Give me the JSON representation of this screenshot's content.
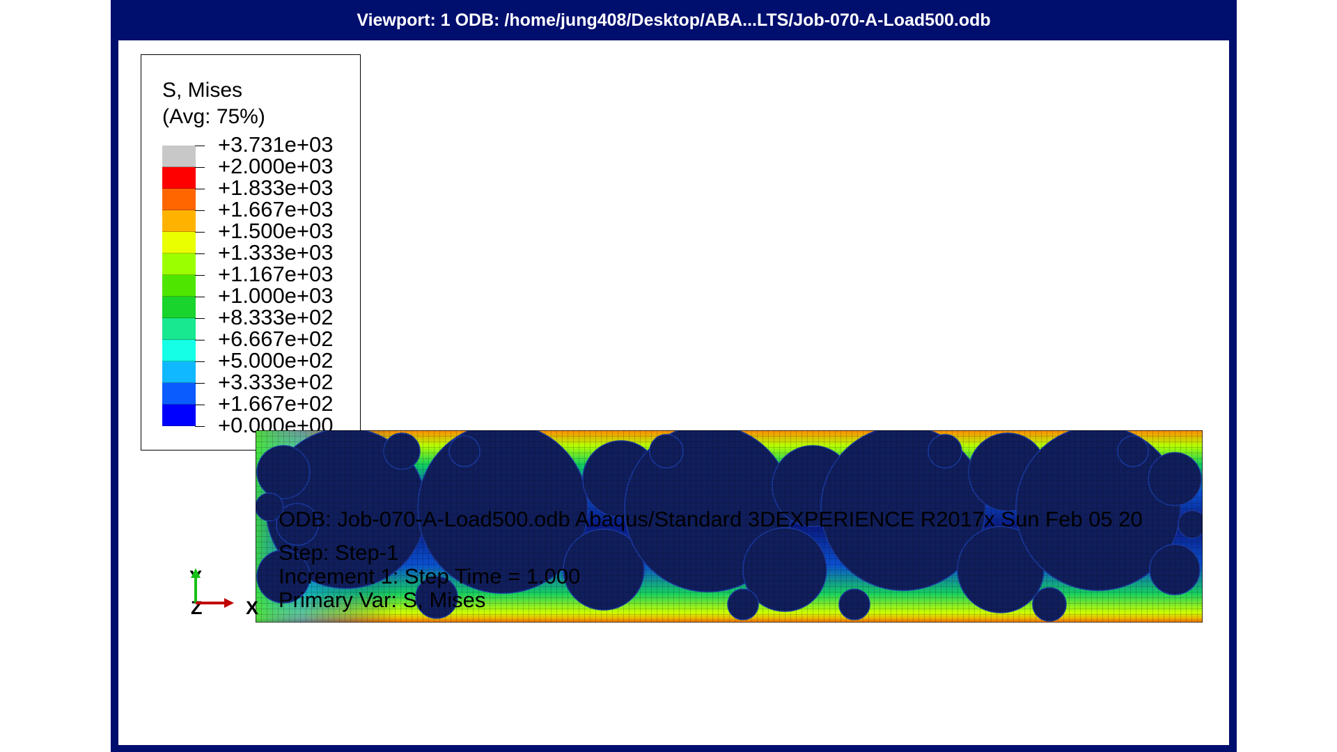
{
  "window": {
    "title": "Viewport: 1      ODB: /home/jung408/Desktop/ABA...LTS/Job-070-A-Load500.odb"
  },
  "legend": {
    "title": "S, Mises",
    "subtitle": "(Avg: 75%)",
    "labels": [
      "+3.731e+03",
      "+2.000e+03",
      "+1.833e+03",
      "+1.667e+03",
      "+1.500e+03",
      "+1.333e+03",
      "+1.167e+03",
      "+1.000e+03",
      "+8.333e+02",
      "+6.667e+02",
      "+5.000e+02",
      "+3.333e+02",
      "+1.667e+02",
      "+0.000e+00"
    ],
    "band_colors": [
      "#c8c8c8",
      "#ff0000",
      "#ff6600",
      "#ffb300",
      "#eaff00",
      "#9bff00",
      "#4ee600",
      "#18d42c",
      "#18e890",
      "#14ffe6",
      "#10b8ff",
      "#0a5cff",
      "#0000ff"
    ]
  },
  "model": {
    "mesh_background": "#0a1a70",
    "particle_color": "#101e5c"
  },
  "info": {
    "odb_line": "ODB: Job-070-A-Load500.odb     Abaqus/Standard 3DEXPERIENCE R2017x     Sun Feb 05 20",
    "step": "Step: Step-1",
    "increment": "Increment      1: Step Time =     1.000",
    "primary_var": "Primary Var: S, Mises"
  },
  "triad": {
    "y_label": "Y",
    "x_label": "X",
    "z_label": "Z",
    "y_color": "#16c016",
    "x_color": "#c00000"
  },
  "colors": {
    "frame": "#000e6e",
    "title_text": "#ffffff"
  }
}
